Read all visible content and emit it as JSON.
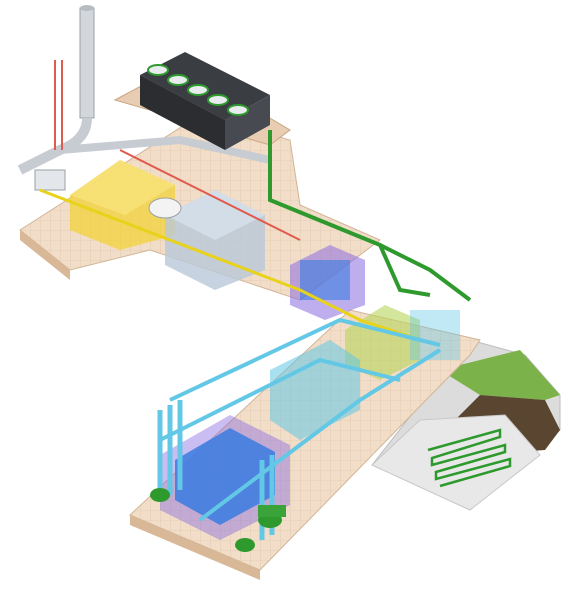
{
  "diagram": {
    "kind": "isometric-plant-illustration",
    "text_labels": [],
    "components": [
      {
        "id": "exhaust-stack",
        "icon": "chimney-icon"
      },
      {
        "id": "cooling-tower",
        "icon": "fan-unit-icon",
        "fan_count": 5
      },
      {
        "id": "engine-generator",
        "icon": "engine-icon"
      },
      {
        "id": "absorption-chiller",
        "icon": "chiller-icon"
      },
      {
        "id": "heat-exchanger-block",
        "icon": "heat-exchanger-icon"
      },
      {
        "id": "storage-tank",
        "icon": "tank-icon"
      },
      {
        "id": "distribution-pumps",
        "icon": "pump-icon"
      },
      {
        "id": "ground-heat-loop",
        "icon": "ground-loop-icon"
      }
    ],
    "pipe_colors": {
      "hot_water": "#e05a4e",
      "cooling_water": "#2e9a2e",
      "chilled_water": "#63c7e6",
      "exhaust": "#c7ccd2",
      "fuel": "#e8d21a"
    },
    "zone_colors": {
      "generator": "#f1d23a",
      "chiller": "#b9c8d8",
      "heat_pump": "#8a6ce0",
      "pump_station": "#b7d65a",
      "chiller_blue": "#3a7be0"
    },
    "floor_color": "#f1ddc8",
    "grass_color": "#7cb24a",
    "soil_color": "#5a4630"
  }
}
